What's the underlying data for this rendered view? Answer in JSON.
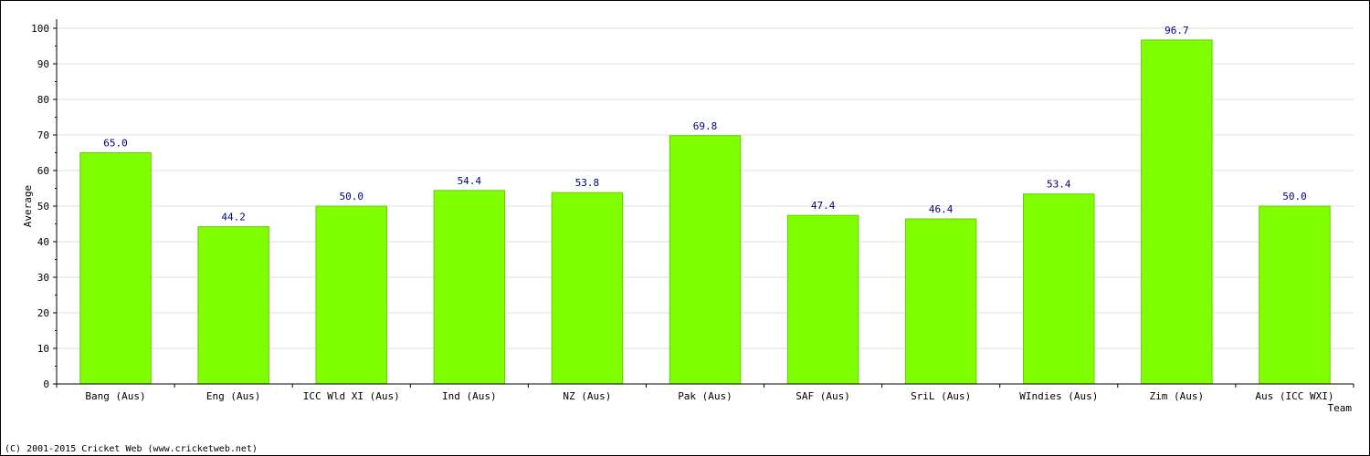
{
  "chart_data": {
    "type": "bar",
    "title": "",
    "xlabel": "Team",
    "ylabel": "Average",
    "categories": [
      "Bang (Aus)",
      "Eng (Aus)",
      "ICC Wld XI (Aus)",
      "Ind (Aus)",
      "NZ (Aus)",
      "Pak (Aus)",
      "SAF (Aus)",
      "SriL (Aus)",
      "WIndies (Aus)",
      "Zim (Aus)",
      "Aus (ICC WXI)"
    ],
    "values": [
      65.0,
      44.2,
      50.0,
      54.4,
      53.8,
      69.8,
      47.4,
      46.4,
      53.4,
      96.7,
      50.0
    ],
    "value_labels": [
      "65.0",
      "44.2",
      "50.0",
      "54.4",
      "53.8",
      "69.8",
      "47.4",
      "46.4",
      "53.4",
      "96.7",
      "50.0"
    ],
    "ylim": [
      0,
      100
    ],
    "yticks": [
      0,
      10,
      20,
      30,
      40,
      50,
      60,
      70,
      80,
      90,
      100
    ],
    "grid": true,
    "bar_color": "#80ff00",
    "bar_edge_color": "#66cc00",
    "value_label_color": "#000080"
  },
  "footer": {
    "copyright": "(C) 2001-2015 Cricket Web (www.cricketweb.net)"
  }
}
